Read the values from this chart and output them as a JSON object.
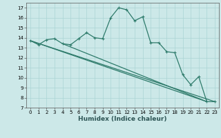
{
  "title": "",
  "xlabel": "Humidex (Indice chaleur)",
  "xlim": [
    -0.5,
    23.5
  ],
  "ylim": [
    7,
    17.5
  ],
  "xticks": [
    0,
    1,
    2,
    3,
    4,
    5,
    6,
    7,
    8,
    9,
    10,
    11,
    12,
    13,
    14,
    15,
    16,
    17,
    18,
    19,
    20,
    21,
    22,
    23
  ],
  "yticks": [
    7,
    8,
    9,
    10,
    11,
    12,
    13,
    14,
    15,
    16,
    17
  ],
  "bg_color": "#cce8e8",
  "grid_color": "#aad4d4",
  "line_color": "#2d7a6a",
  "line1_x": [
    0,
    1,
    2,
    3,
    4,
    5,
    6,
    7,
    8,
    9,
    10,
    11,
    12,
    13,
    14,
    15,
    16,
    17,
    18,
    19,
    20,
    21,
    22,
    23
  ],
  "line1_y": [
    13.7,
    13.3,
    13.8,
    13.9,
    13.4,
    13.3,
    13.9,
    14.5,
    14.0,
    13.9,
    16.0,
    17.0,
    16.8,
    15.7,
    16.1,
    13.5,
    13.5,
    12.6,
    12.5,
    10.3,
    9.3,
    10.1,
    7.6,
    7.6
  ],
  "line2_x": [
    0,
    23
  ],
  "line2_y": [
    13.7,
    7.6
  ],
  "line3_x": [
    0,
    22
  ],
  "line3_y": [
    13.7,
    7.6
  ],
  "line4_x": [
    4,
    22
  ],
  "line4_y": [
    13.4,
    7.6
  ],
  "tick_fontsize": 5.0,
  "xlabel_fontsize": 6.5
}
